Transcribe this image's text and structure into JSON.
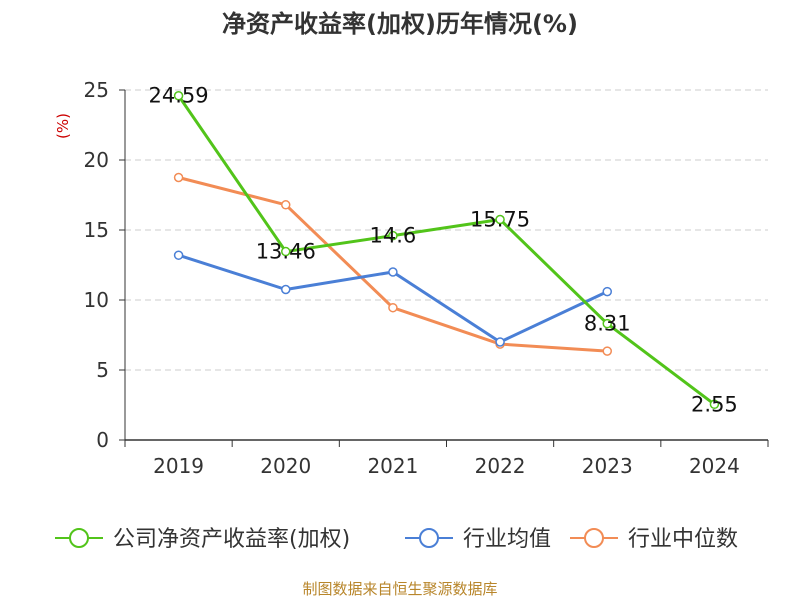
{
  "chart_data": {
    "type": "line",
    "title": "净资产收益率(加权)历年情况(%)",
    "ylabel": "(%)",
    "xlabel": "",
    "categories": [
      "2019",
      "2020",
      "2021",
      "2022",
      "2023",
      "2024"
    ],
    "ylim": [
      0,
      25
    ],
    "yticks": [
      0,
      5,
      10,
      15,
      20,
      25
    ],
    "grid": true,
    "legend_position": "bottom",
    "series": [
      {
        "name": "公司净资产收益率(加权)",
        "color": "#52c41a",
        "values": [
          24.59,
          13.46,
          14.6,
          15.75,
          8.31,
          2.55
        ],
        "labels": [
          "24.59",
          "13.46",
          "14.6",
          "15.75",
          "8.31",
          "2.55"
        ]
      },
      {
        "name": "行业均值",
        "color": "#4a7fd6",
        "values": [
          13.2,
          10.75,
          12.0,
          7.0,
          10.6,
          null
        ]
      },
      {
        "name": "行业中位数",
        "color": "#f28c55",
        "values": [
          18.75,
          16.8,
          9.45,
          6.85,
          6.35,
          null
        ]
      }
    ]
  },
  "source": "制图数据来自恒生聚源数据库"
}
